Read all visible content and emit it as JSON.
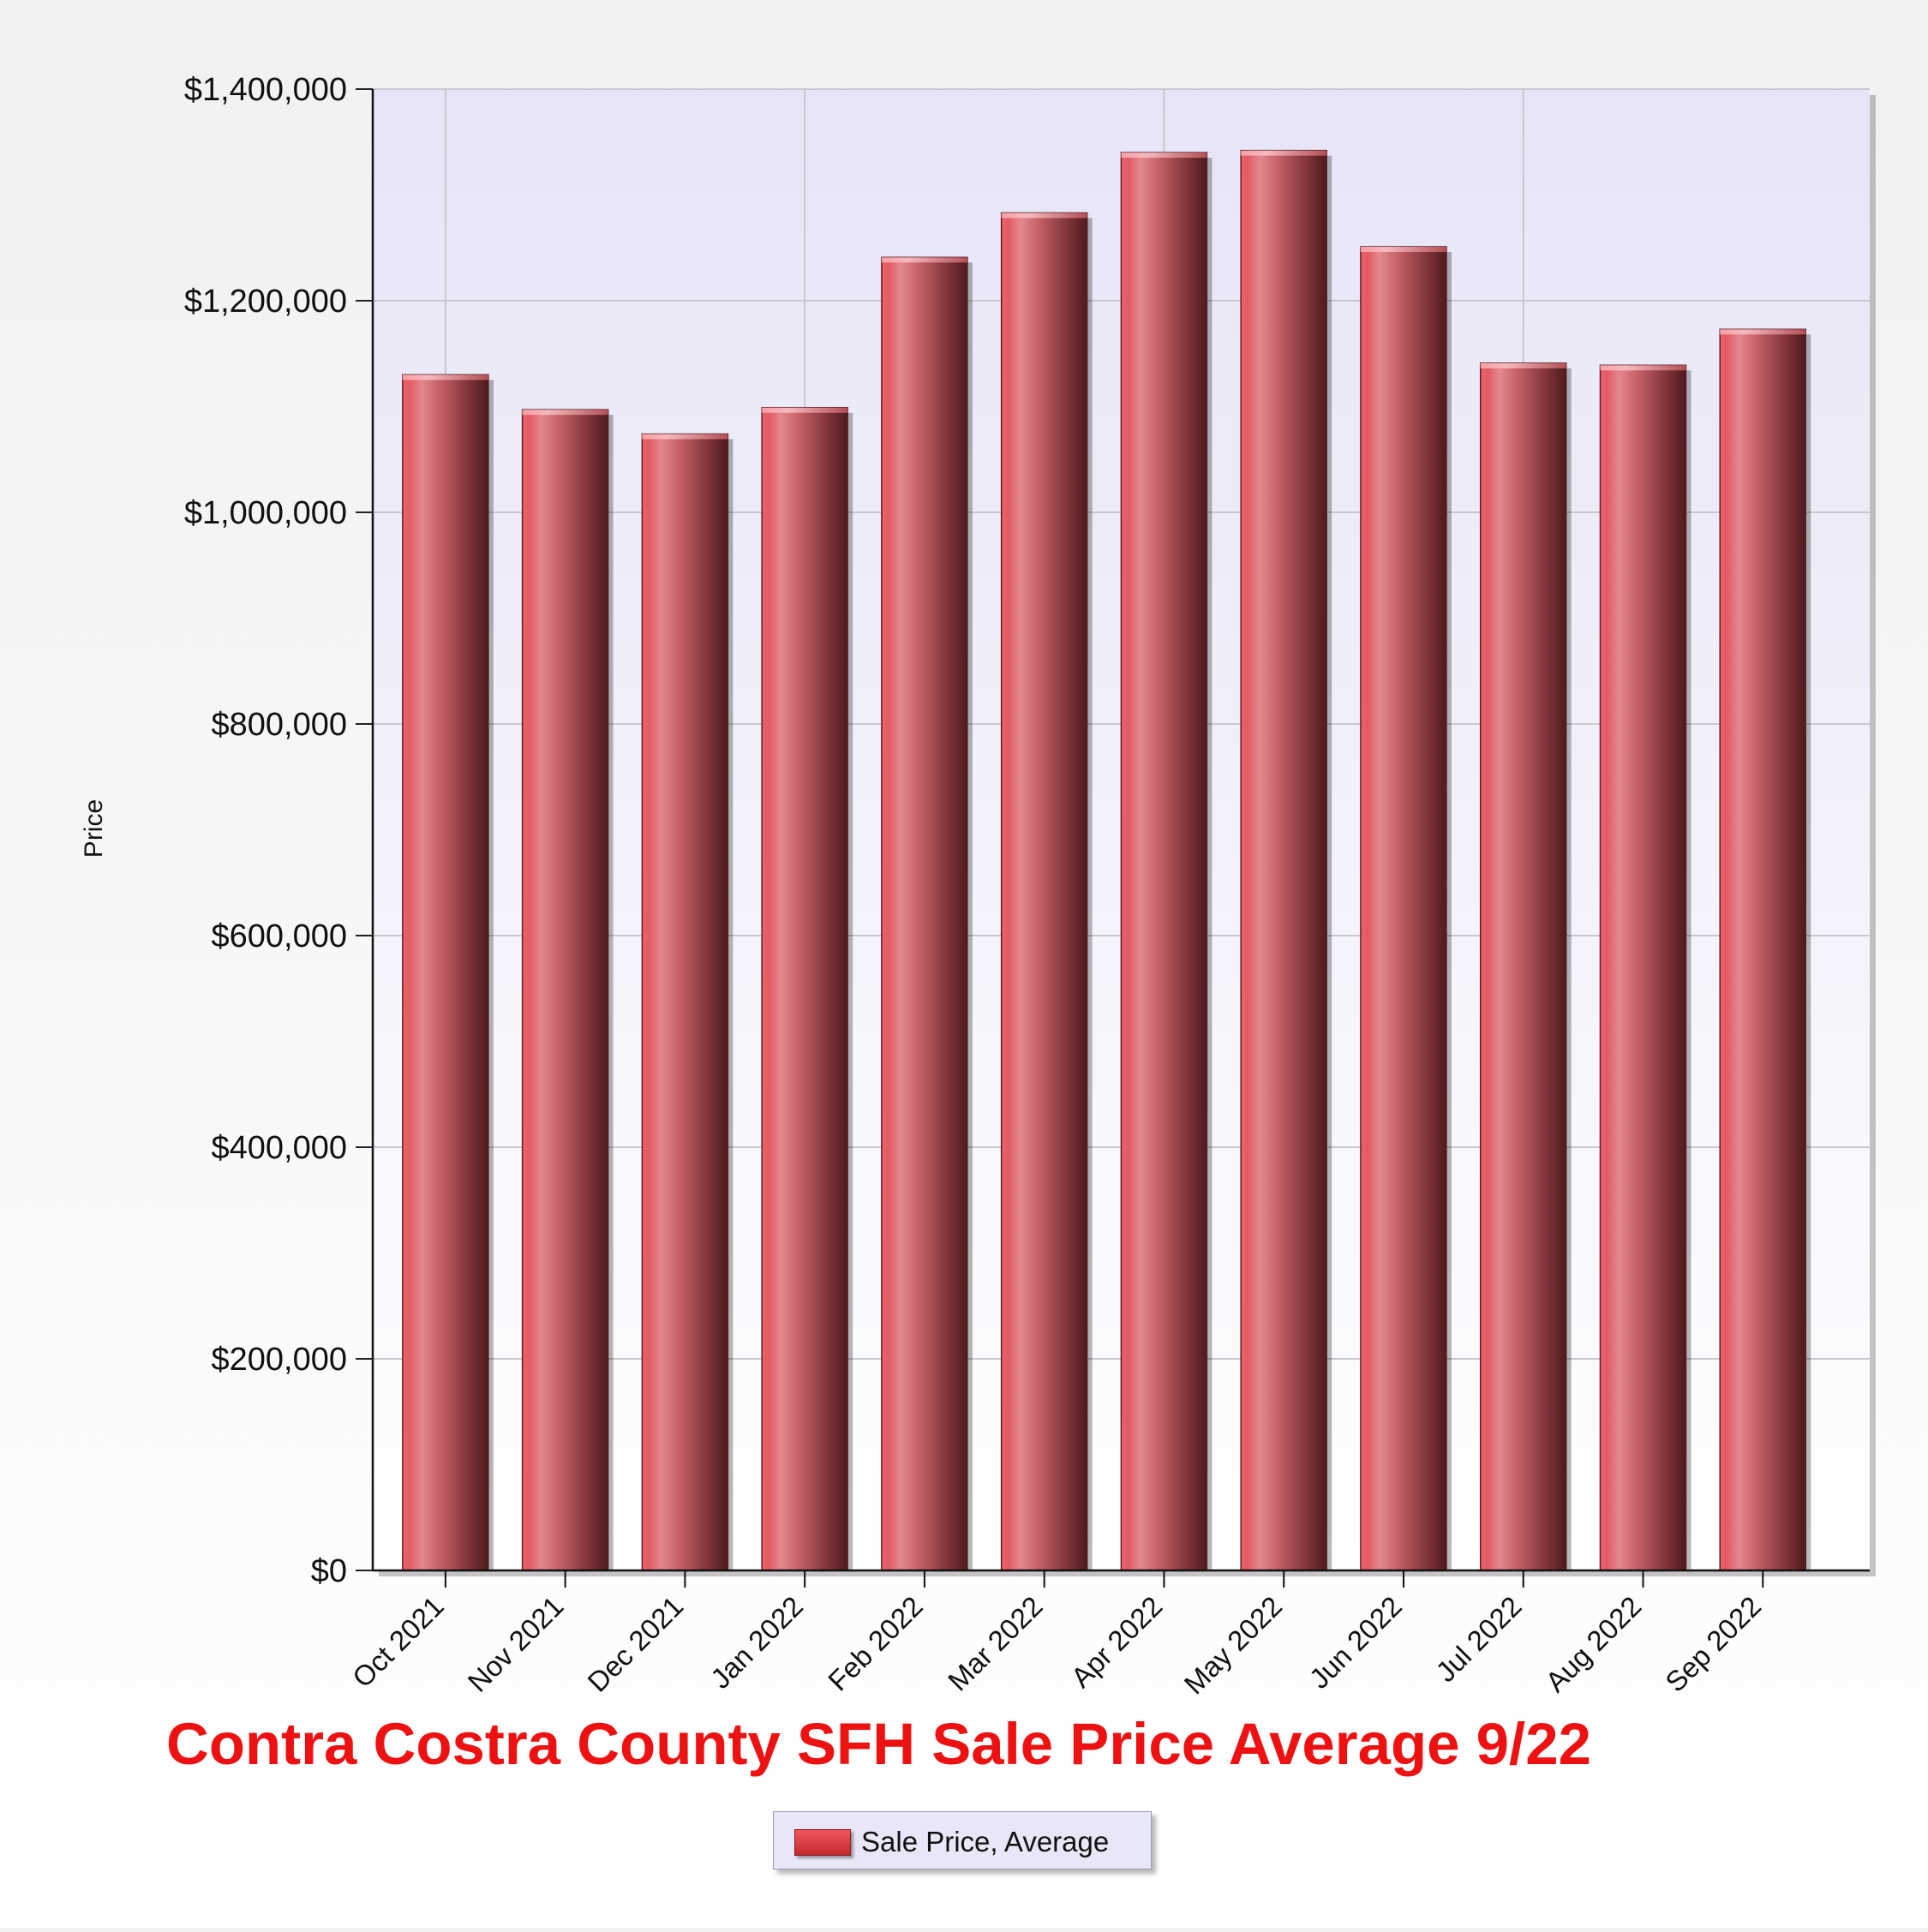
{
  "chart_data": {
    "type": "bar",
    "title": "Contra Costra County SFH Sale Price Average 9/22",
    "ylabel": "Price",
    "xlabel": "",
    "ylim": [
      0,
      1400000
    ],
    "y_ticks": [
      0,
      200000,
      400000,
      600000,
      800000,
      1000000,
      1200000,
      1400000
    ],
    "y_tick_labels": [
      "$0",
      "$200,000",
      "$400,000",
      "$600,000",
      "$800,000",
      "$1,000,000",
      "$1,200,000",
      "$1,400,000"
    ],
    "categories": [
      "Oct 2021",
      "Nov 2021",
      "Dec 2021",
      "Jan 2022",
      "Feb 2022",
      "Mar 2022",
      "Apr 2022",
      "May 2022",
      "Jun 2022",
      "Jul 2022",
      "Aug 2022",
      "Sep 2022"
    ],
    "series": [
      {
        "name": "Sale Price, Average",
        "color": "#d9454c",
        "values": [
          1130000,
          1097000,
          1074000,
          1099000,
          1241000,
          1283000,
          1340000,
          1342000,
          1251000,
          1141000,
          1139000,
          1173000
        ]
      }
    ],
    "grid": true,
    "legend_position": "bottom"
  }
}
